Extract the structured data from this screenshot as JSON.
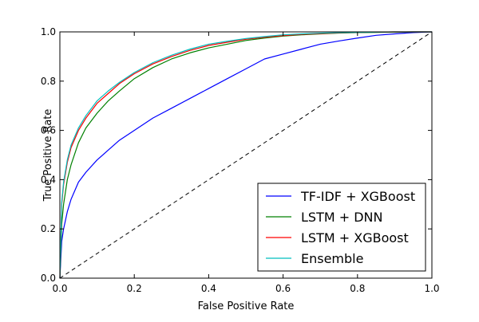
{
  "chart_data": {
    "type": "line",
    "title": "",
    "xlabel": "False Positive Rate",
    "ylabel": "True Positive Rate",
    "xlim": [
      0.0,
      1.0
    ],
    "ylim": [
      0.0,
      1.0
    ],
    "x_ticks": [
      "0.0",
      "0.2",
      "0.4",
      "0.6",
      "0.8",
      "1.0"
    ],
    "y_ticks": [
      "0.0",
      "0.2",
      "0.4",
      "0.6",
      "0.8",
      "1.0"
    ],
    "grid": false,
    "legend_position": "bottom-right",
    "series": [
      {
        "name": "TF-IDF + XGBoost",
        "color": "#0000ff",
        "x": [
          0.0,
          0.005,
          0.01,
          0.02,
          0.03,
          0.05,
          0.07,
          0.1,
          0.13,
          0.16,
          0.2,
          0.25,
          0.3,
          0.35,
          0.4,
          0.45,
          0.5,
          0.55,
          0.6,
          0.65,
          0.7,
          0.75,
          0.8,
          0.85,
          0.9,
          0.95,
          1.0
        ],
        "y": [
          0.0,
          0.15,
          0.2,
          0.27,
          0.32,
          0.39,
          0.43,
          0.48,
          0.52,
          0.56,
          0.6,
          0.65,
          0.69,
          0.73,
          0.77,
          0.81,
          0.85,
          0.89,
          0.91,
          0.93,
          0.95,
          0.963,
          0.975,
          0.986,
          0.992,
          0.997,
          1.0
        ]
      },
      {
        "name": "LSTM + DNN",
        "color": "#008000",
        "x": [
          0.0,
          0.005,
          0.01,
          0.02,
          0.03,
          0.05,
          0.07,
          0.1,
          0.13,
          0.16,
          0.2,
          0.25,
          0.3,
          0.35,
          0.4,
          0.45,
          0.5,
          0.55,
          0.6,
          0.65,
          0.7,
          0.75,
          0.8,
          0.85,
          0.9,
          0.95,
          1.0
        ],
        "y": [
          0.0,
          0.22,
          0.3,
          0.4,
          0.46,
          0.55,
          0.61,
          0.67,
          0.72,
          0.76,
          0.81,
          0.855,
          0.89,
          0.915,
          0.935,
          0.95,
          0.965,
          0.975,
          0.983,
          0.988,
          0.992,
          0.995,
          0.997,
          0.998,
          0.999,
          1.0,
          1.0
        ]
      },
      {
        "name": "LSTM + XGBoost",
        "color": "#ff0000",
        "x": [
          0.0,
          0.005,
          0.01,
          0.02,
          0.03,
          0.05,
          0.07,
          0.1,
          0.13,
          0.16,
          0.2,
          0.25,
          0.3,
          0.35,
          0.4,
          0.45,
          0.5,
          0.55,
          0.6,
          0.65,
          0.7,
          0.75,
          0.8,
          0.85,
          0.9,
          0.95,
          1.0
        ],
        "y": [
          0.0,
          0.3,
          0.38,
          0.47,
          0.53,
          0.6,
          0.65,
          0.71,
          0.75,
          0.79,
          0.83,
          0.87,
          0.9,
          0.925,
          0.945,
          0.958,
          0.97,
          0.978,
          0.985,
          0.99,
          0.993,
          0.996,
          0.998,
          0.999,
          1.0,
          1.0,
          1.0
        ]
      },
      {
        "name": "Ensemble",
        "color": "#00bfbf",
        "x": [
          0.0,
          0.005,
          0.01,
          0.02,
          0.03,
          0.05,
          0.07,
          0.1,
          0.13,
          0.16,
          0.2,
          0.25,
          0.3,
          0.35,
          0.4,
          0.45,
          0.5,
          0.55,
          0.6,
          0.65,
          0.7,
          0.75,
          0.8,
          0.85,
          0.9,
          0.95,
          1.0
        ],
        "y": [
          0.0,
          0.31,
          0.39,
          0.48,
          0.54,
          0.61,
          0.66,
          0.72,
          0.76,
          0.795,
          0.835,
          0.875,
          0.905,
          0.93,
          0.95,
          0.962,
          0.973,
          0.981,
          0.988,
          0.992,
          0.995,
          0.997,
          0.998,
          0.999,
          1.0,
          1.0,
          1.0
        ]
      }
    ],
    "reference_line": {
      "style": "dashed",
      "color": "#000000",
      "x": [
        0.0,
        1.0
      ],
      "y": [
        0.0,
        1.0
      ]
    }
  }
}
